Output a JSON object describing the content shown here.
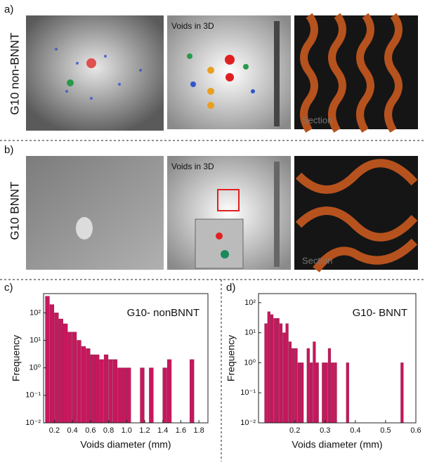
{
  "panels": [
    {
      "label": "a)",
      "row": "G10 non-BNNT",
      "caption": "Voids in 3D",
      "section": "Section"
    },
    {
      "label": "b)",
      "row": "G10 BNNT",
      "caption": "Voids in 3D",
      "section": "Section"
    },
    {
      "label": "c)"
    },
    {
      "label": "d)"
    }
  ],
  "chart_data": [
    {
      "type": "histogram",
      "title": "G10- nonBNNT",
      "x_label": "Voids diameter (mm)",
      "y_label": "Frequency",
      "color": "#c8175d",
      "bins": [
        0.1,
        0.15,
        0.2,
        0.25,
        0.3,
        0.35,
        0.4,
        0.45,
        0.5,
        0.55,
        0.6,
        0.65,
        0.7,
        0.75,
        0.8,
        0.85,
        0.9,
        0.95,
        1.0,
        1.05,
        1.1,
        1.15,
        1.2,
        1.25,
        1.3,
        1.35,
        1.4,
        1.45,
        1.5,
        1.55,
        1.6,
        1.65,
        1.7,
        1.75,
        1.8
      ],
      "values": [
        400,
        200,
        100,
        60,
        40,
        20,
        20,
        10,
        6,
        5,
        3,
        3,
        2,
        3,
        2,
        2,
        1,
        1,
        1,
        0,
        0,
        1,
        0,
        1,
        0,
        0,
        1,
        2,
        0,
        0,
        0,
        0,
        2,
        0
      ],
      "xlim": [
        0.08,
        1.9
      ],
      "xticks": [
        0.2,
        0.4,
        0.6,
        0.8,
        {
          "value": 1,
          "label": "1.0"
        },
        1.2,
        1.4,
        1.6,
        1.8
      ],
      "ylim": [
        0.01,
        500
      ],
      "log_y": true,
      "yticks": [
        {
          "value": 0.01,
          "label": "10⁻²"
        },
        {
          "value": 0.1,
          "label": "10⁻¹"
        },
        {
          "value": 1,
          "label": "10⁰"
        },
        {
          "value": 10,
          "label": "10¹"
        },
        {
          "value": 100,
          "label": "10²"
        }
      ]
    },
    {
      "type": "histogram",
      "title": "G10- BNNT",
      "x_label": "Voids diameter (mm)",
      "y_label": "Frequency",
      "color": "#c8175d",
      "bins": [
        0.1,
        0.11,
        0.12,
        0.13,
        0.14,
        0.15,
        0.16,
        0.17,
        0.18,
        0.19,
        0.2,
        0.21,
        0.22,
        0.23,
        0.24,
        0.25,
        0.26,
        0.27,
        0.28,
        0.29,
        0.3,
        0.31,
        0.32,
        0.33,
        0.34,
        0.35,
        0.36,
        0.37,
        0.38,
        0.39,
        0.4,
        0.41,
        0.42,
        0.43,
        0.44,
        0.45,
        0.46,
        0.47,
        0.48,
        0.49,
        0.5,
        0.51,
        0.52,
        0.53,
        0.54,
        0.55,
        0.56
      ],
      "values": [
        20,
        50,
        40,
        30,
        30,
        20,
        10,
        20,
        5,
        3,
        3,
        1,
        1,
        0,
        3,
        1,
        5,
        1,
        0,
        1,
        1,
        3,
        1,
        1,
        0,
        0,
        0,
        1,
        0,
        0,
        0,
        0,
        0,
        0,
        0,
        0,
        0,
        0,
        0,
        0,
        0,
        0,
        0,
        0,
        0,
        1
      ],
      "xlim": [
        0.08,
        0.6
      ],
      "xticks": [
        0.2,
        0.3,
        0.4,
        0.5,
        0.6
      ],
      "ylim": [
        0.01,
        200
      ],
      "log_y": true,
      "yticks": [
        {
          "value": 0.01,
          "label": "10⁻²"
        },
        {
          "value": 0.1,
          "label": "10⁻¹"
        },
        {
          "value": 1,
          "label": "10⁰"
        },
        {
          "value": 10,
          "label": "10¹"
        },
        {
          "value": 100,
          "label": "10²"
        }
      ]
    }
  ]
}
